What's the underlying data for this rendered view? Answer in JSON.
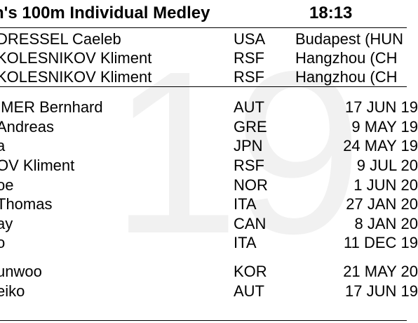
{
  "watermark": "19",
  "header": {
    "title": "n's 100m Individual Medley",
    "time": "18:13"
  },
  "records": [
    {
      "name": "DRESSEL Caeleb",
      "nation": "USA",
      "place": "Budapest (HUN"
    },
    {
      "name": "KOLESNIKOV Kliment",
      "nation": "RSF",
      "place": "Hangzhou (CH"
    },
    {
      "name": "KOLESNIKOV Kliment",
      "nation": "RSF",
      "place": "Hangzhou (CH"
    }
  ],
  "entries": [
    {
      "name": "IMER Bernhard",
      "nation": "AUT",
      "date": "17 JUN 19"
    },
    {
      "name": "Andreas",
      "nation": "GRE",
      "date": "9 MAY 19"
    },
    {
      "name": "a",
      "nation": "JPN",
      "date": "24 MAY 19"
    },
    {
      "name": "OV Kliment",
      "nation": "RSF",
      "date": "9 JUL 20"
    },
    {
      "name": "oe",
      "nation": "NOR",
      "date": "1 JUN 20"
    },
    {
      "name": "Thomas",
      "nation": "ITA",
      "date": "27 JAN 20"
    },
    {
      "name": "ay",
      "nation": "CAN",
      "date": "8 JAN 20"
    },
    {
      "name": "o",
      "nation": "ITA",
      "date": "11 DEC 19"
    }
  ],
  "reserves": [
    {
      "name": "unwoo",
      "nation": "KOR",
      "date": "21 MAY 20"
    },
    {
      "name": "eiko",
      "nation": "AUT",
      "date": "17 JUN 19"
    }
  ]
}
